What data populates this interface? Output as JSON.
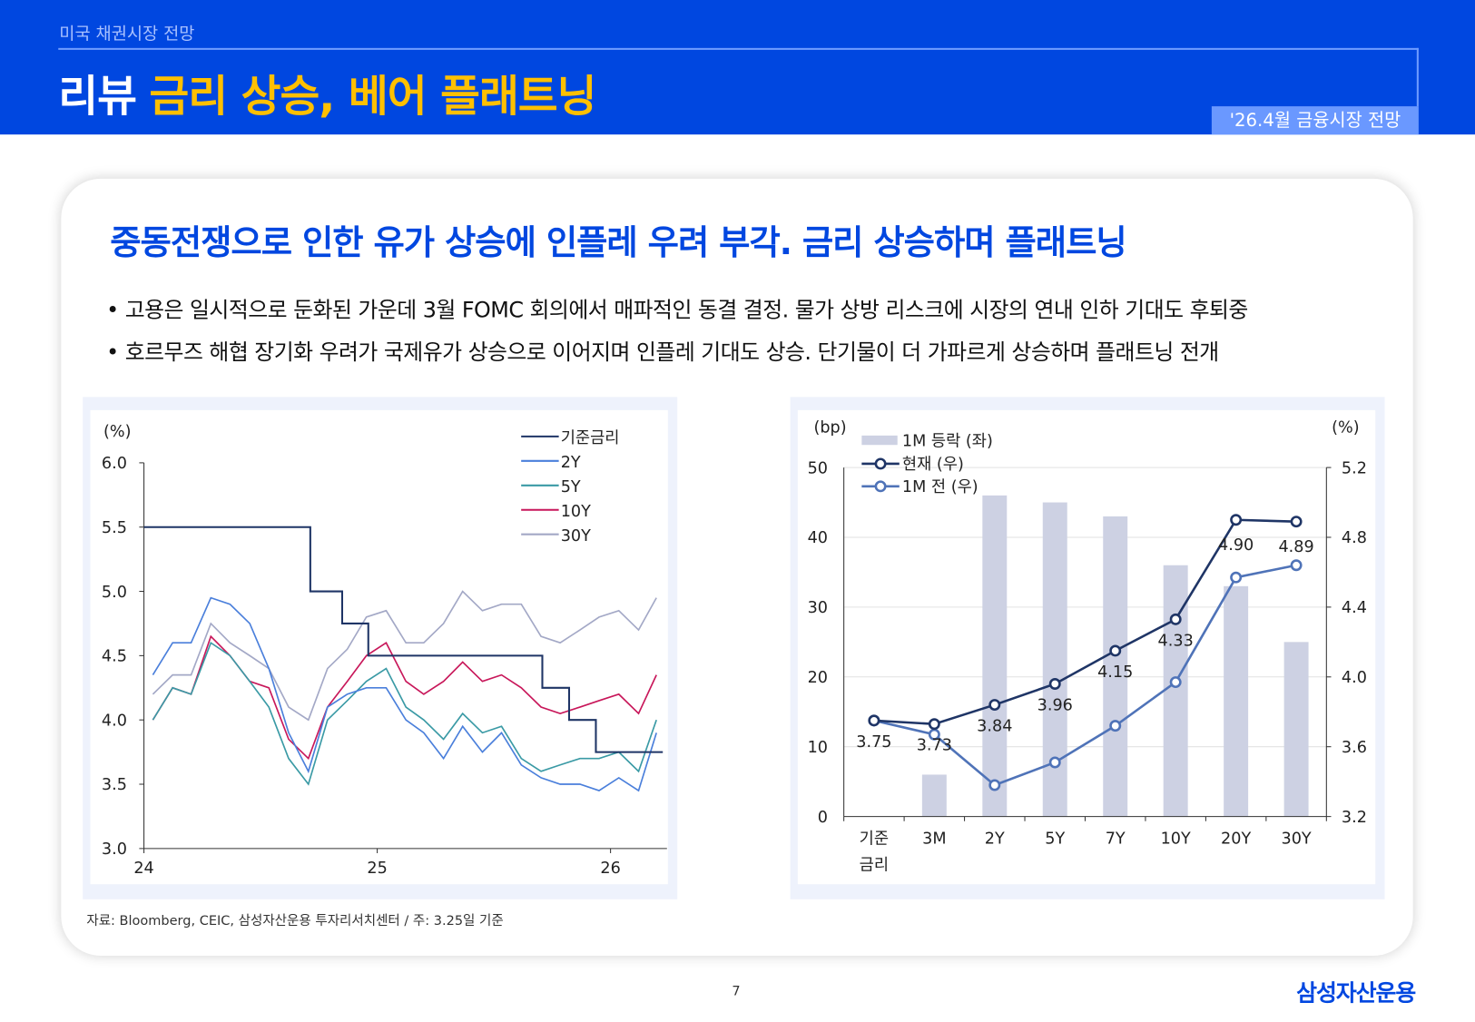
{
  "header": {
    "breadcrumb": "미국 채권시장 전망",
    "title_main": "리뷰",
    "title_sub": "금리 상승, 베어 플래트닝",
    "badge": "'26.4월 금융시장 전망"
  },
  "content": {
    "headline": "중동전쟁으로 인한 유가 상승에 인플레 우려 부각. 금리 상승하며 플래트닝",
    "bullets": [
      "• 고용은 일시적으로 둔화된 가운데 3월 FOMC 회의에서 매파적인 동결 결정. 물가 상방 리스크에 시장의 연내 인하 기대도 후퇴중",
      "• 호르무즈 해협 장기화 우려가 국제유가 상승으로 이어지며 인플레 기대도 상승. 단기물이 더 가파르게 상승하며 플래트닝 전개"
    ],
    "source": "자료: Bloomberg, CEIC, 삼성자산운용 투자리서치센터 / 주: 3.25일 기준",
    "page_number": "7",
    "logo": "삼성자산운용"
  },
  "colors": {
    "brand": "#0047e0",
    "accent": "#ffc000"
  },
  "chart_data": [
    {
      "type": "line",
      "ylabel": "(%)",
      "ylim": [
        3.0,
        6.0
      ],
      "yticks": [
        "3.0",
        "3.5",
        "4.0",
        "4.5",
        "5.0",
        "5.5",
        "6.0"
      ],
      "xticks": [
        "24",
        "25",
        "26"
      ],
      "legend_position": "top-right",
      "grid": false,
      "x": [
        "2024-01",
        "2024-02",
        "2024-03",
        "2024-04",
        "2024-05",
        "2024-06",
        "2024-07",
        "2024-08",
        "2024-09",
        "2024-10",
        "2024-11",
        "2024-12",
        "2025-01",
        "2025-02",
        "2025-03",
        "2025-04",
        "2025-05",
        "2025-06",
        "2025-07",
        "2025-08",
        "2025-09",
        "2025-10",
        "2025-11",
        "2025-12",
        "2026-01",
        "2026-02",
        "2026-03"
      ],
      "policy_rate": {
        "name": "기준금리",
        "color": "#1f3566",
        "steps": [
          [
            "2024-01-01",
            5.5
          ],
          [
            "2024-09-18",
            5.0
          ],
          [
            "2024-11-07",
            4.75
          ],
          [
            "2024-12-18",
            4.5
          ],
          [
            "2025-09-17",
            4.25
          ],
          [
            "2025-10-29",
            4.0
          ],
          [
            "2025-12-10",
            3.75
          ],
          [
            "2026-03-25",
            3.75
          ]
        ]
      },
      "series": [
        {
          "name": "2Y",
          "color": "#4a7fdb",
          "values": [
            4.35,
            4.6,
            4.6,
            4.95,
            4.9,
            4.75,
            4.4,
            3.9,
            3.6,
            4.1,
            4.2,
            4.25,
            4.25,
            4.0,
            3.9,
            3.7,
            3.95,
            3.75,
            3.9,
            3.65,
            3.55,
            3.5,
            3.5,
            3.45,
            3.55,
            3.45,
            3.9
          ]
        },
        {
          "name": "5Y",
          "color": "#3a9aa5",
          "values": [
            4.0,
            4.25,
            4.2,
            4.6,
            4.5,
            4.3,
            4.1,
            3.7,
            3.5,
            4.0,
            4.15,
            4.3,
            4.4,
            4.1,
            4.0,
            3.85,
            4.05,
            3.9,
            3.95,
            3.7,
            3.6,
            3.65,
            3.7,
            3.7,
            3.75,
            3.6,
            4.0
          ]
        },
        {
          "name": "10Y",
          "color": "#c8175a",
          "values": [
            4.0,
            4.25,
            4.2,
            4.65,
            4.5,
            4.3,
            4.25,
            3.85,
            3.7,
            4.1,
            4.3,
            4.5,
            4.6,
            4.3,
            4.2,
            4.3,
            4.45,
            4.3,
            4.35,
            4.25,
            4.1,
            4.05,
            4.1,
            4.15,
            4.2,
            4.05,
            4.35
          ]
        },
        {
          "name": "30Y",
          "color": "#a3a8c6",
          "values": [
            4.2,
            4.35,
            4.35,
            4.75,
            4.6,
            4.5,
            4.4,
            4.1,
            4.0,
            4.4,
            4.55,
            4.8,
            4.85,
            4.6,
            4.6,
            4.75,
            5.0,
            4.85,
            4.9,
            4.9,
            4.65,
            4.6,
            4.7,
            4.8,
            4.85,
            4.7,
            4.95
          ]
        }
      ]
    },
    {
      "type": "bar+line",
      "categories": [
        "기준\n금리",
        "3M",
        "2Y",
        "5Y",
        "7Y",
        "10Y",
        "20Y",
        "30Y"
      ],
      "ylabel_left": "(bp)",
      "ylabel_right": "(%)",
      "ylim_left": [
        0,
        50
      ],
      "ylim_right": [
        3.2,
        5.2
      ],
      "yticks_left": [
        "0",
        "10",
        "20",
        "30",
        "40",
        "50"
      ],
      "yticks_right": [
        "3.2",
        "3.6",
        "4.0",
        "4.4",
        "4.8",
        "5.2"
      ],
      "grid": true,
      "legend_position": "top-left",
      "series": [
        {
          "name": "1M 등락 (좌)",
          "type": "bar",
          "color": "#cdd1e3",
          "values": [
            0,
            6,
            46,
            45,
            43,
            36,
            33,
            25
          ]
        },
        {
          "name": "현재 (우)",
          "type": "line",
          "color": "#1f3566",
          "values": [
            3.75,
            3.73,
            3.84,
            3.96,
            4.15,
            4.33,
            4.9,
            4.89
          ],
          "labels": [
            "3.75",
            "3.73",
            "3.84",
            "3.96",
            "4.15",
            "4.33",
            "4.90",
            "4.89"
          ]
        },
        {
          "name": "1M 전 (우)",
          "type": "line",
          "color": "#4f73b8",
          "values": [
            3.75,
            3.67,
            3.38,
            3.51,
            3.72,
            3.97,
            4.57,
            4.64
          ]
        }
      ]
    }
  ]
}
